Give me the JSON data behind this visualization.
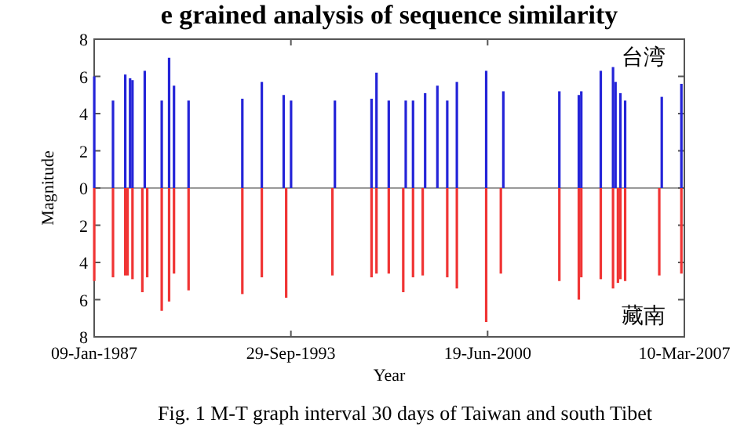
{
  "chart_data": {
    "type": "bar",
    "title": "e grained analysis of sequence similarity",
    "xlabel": "Year",
    "ylabel": "Magnitude",
    "annotations": [
      "Fig. 1 M-T graph interval 30 days of Taiwan and south Tibet"
    ],
    "xlim": [
      "1987-01-09",
      "2007-03-10"
    ],
    "xticks": [
      {
        "value": "1987-01-09",
        "label": "09-Jan-1987"
      },
      {
        "value": "1993-09-29",
        "label": "29-Sep-1993"
      },
      {
        "value": "2000-06-19",
        "label": "19-Jun-2000"
      },
      {
        "value": "2007-03-10",
        "label": "10-Mar-2007"
      }
    ],
    "ylim": [
      -8,
      8
    ],
    "yticks": [
      {
        "value": -8,
        "label": "8"
      },
      {
        "value": -6,
        "label": "6"
      },
      {
        "value": -4,
        "label": "4"
      },
      {
        "value": -2,
        "label": "2"
      },
      0,
      2,
      4,
      6,
      8
    ],
    "series": [
      {
        "name": "台湾",
        "color": "#2424d8",
        "x": [
          "1987-01-10",
          "1987-09",
          "1988-02",
          "1988-04",
          "1988-05",
          "1988-10",
          "1989-05",
          "1989-08",
          "1989-10",
          "1990-04",
          "1992-02",
          "1992-10",
          "1993-07",
          "1993-10",
          "1995-04",
          "1996-07",
          "1996-09",
          "1997-02",
          "1997-09",
          "1997-12",
          "1998-05",
          "1998-10",
          "1999-02",
          "1999-06",
          "2000-06",
          "2001-01",
          "2002-12",
          "2003-08",
          "2003-09",
          "2004-05",
          "2004-10",
          "2004-11",
          "2005-01",
          "2005-03",
          "2006-06",
          "2007-02"
        ],
        "values": [
          6.0,
          4.7,
          6.1,
          5.9,
          5.8,
          6.3,
          4.7,
          7.0,
          5.5,
          4.7,
          4.8,
          5.7,
          5.0,
          4.7,
          4.7,
          4.8,
          6.2,
          4.7,
          4.7,
          4.7,
          5.1,
          5.5,
          4.7,
          5.7,
          6.3,
          5.2,
          5.2,
          5.0,
          5.2,
          6.3,
          6.5,
          5.7,
          5.1,
          4.7,
          4.9,
          5.6
        ]
      },
      {
        "name": "藏南",
        "color": "#f03434",
        "x": [
          "1987-01-10",
          "1987-09",
          "1988-02",
          "1988-03",
          "1988-05",
          "1988-09",
          "1988-11",
          "1989-05",
          "1989-08",
          "1989-10",
          "1990-04",
          "1992-02",
          "1992-10",
          "1993-08",
          "1995-03",
          "1996-07",
          "1996-09",
          "1997-02",
          "1997-08",
          "1997-12",
          "1998-04",
          "1999-02",
          "1999-06",
          "2000-06",
          "2000-12",
          "2002-12",
          "2003-08",
          "2003-09",
          "2004-05",
          "2004-10",
          "2004-12",
          "2005-01",
          "2005-03",
          "2006-05",
          "2007-02"
        ],
        "values": [
          -5.0,
          -4.8,
          -4.7,
          -4.7,
          -4.9,
          -5.6,
          -4.8,
          -6.6,
          -6.1,
          -4.6,
          -5.5,
          -5.7,
          -4.8,
          -5.9,
          -4.7,
          -4.8,
          -4.6,
          -4.6,
          -5.6,
          -4.8,
          -4.7,
          -4.8,
          -5.4,
          -7.2,
          -4.6,
          -5.0,
          -6.0,
          -4.8,
          -4.9,
          -5.4,
          -5.1,
          -4.9,
          -5.0,
          -4.7,
          -4.6
        ]
      }
    ]
  }
}
